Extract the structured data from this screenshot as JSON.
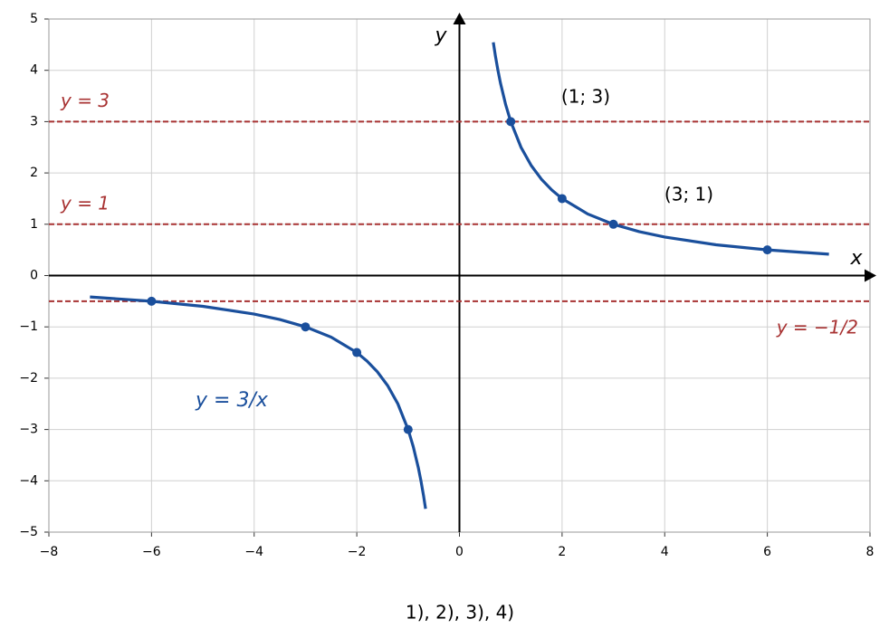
{
  "chart_data": {
    "type": "function-plot",
    "xlim": [
      -8,
      8
    ],
    "ylim": [
      -5,
      5
    ],
    "xticks": [
      {
        "value": -8,
        "label": "−8"
      },
      {
        "value": -6,
        "label": "−6"
      },
      {
        "value": -4,
        "label": "−4"
      },
      {
        "value": -2,
        "label": "−2"
      },
      0,
      2,
      4,
      6,
      8
    ],
    "yticks": [
      {
        "value": -5,
        "label": "−5"
      },
      {
        "value": -4,
        "label": "−4"
      },
      {
        "value": -3,
        "label": "−3"
      },
      {
        "value": -2,
        "label": "−2"
      },
      {
        "value": -1,
        "label": "−1"
      },
      0,
      1,
      2,
      3,
      4,
      5
    ],
    "grid": true,
    "xlabel": "x",
    "ylabel": "y",
    "series": [
      {
        "name": "y = 3/x",
        "color": "#1a4f9c",
        "x": [
          0.66,
          0.7,
          0.75,
          0.8,
          0.9,
          1,
          1.2,
          1.4,
          1.6,
          1.8,
          2,
          2.5,
          3,
          3.5,
          4,
          5,
          6,
          7.2,
          null,
          -7.2,
          -6,
          -5,
          -4,
          -3.5,
          -3,
          -2.5,
          -2,
          -1.8,
          -1.6,
          -1.4,
          -1.2,
          -1,
          -0.9,
          -0.8,
          -0.75,
          -0.7,
          -0.66
        ],
        "values": [
          4.545,
          4.286,
          4,
          3.75,
          3.333,
          3,
          2.5,
          2.143,
          1.875,
          1.667,
          1.5,
          1.2,
          1,
          0.857,
          0.75,
          0.6,
          0.5,
          0.417,
          null,
          -0.417,
          -0.5,
          -0.6,
          -0.75,
          -0.857,
          -1,
          -1.2,
          -1.5,
          -1.667,
          -1.875,
          -2.143,
          -2.5,
          -3,
          -3.333,
          -3.75,
          -4,
          -4.286,
          -4.545
        ]
      }
    ],
    "points": {
      "color": "#1a4f9c",
      "x": [
        1,
        2,
        3,
        6,
        -1,
        -2,
        -3,
        -6
      ],
      "values": [
        3,
        1.5,
        1,
        0.5,
        -3,
        -1.5,
        -1,
        -0.5
      ]
    },
    "hlines": {
      "color": "#a83232",
      "values": [
        3,
        1,
        -0.5
      ],
      "labels": [
        "y = 3",
        "y = 1",
        "y = −1/2"
      ]
    },
    "annotations": [
      "(1; 3)",
      "(3; 1)"
    ],
    "caption": "1), 2), 3), 4)"
  }
}
